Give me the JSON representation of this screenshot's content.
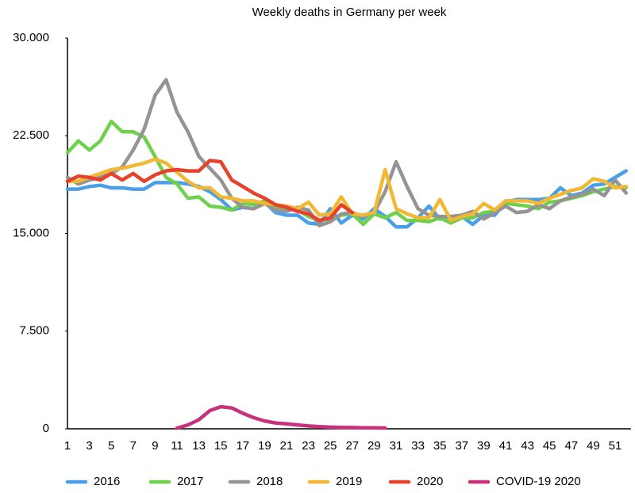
{
  "chart_data": {
    "type": "line",
    "title": "Weekly deaths in Germany per week",
    "categories": [
      1,
      null,
      3,
      null,
      5,
      null,
      7,
      null,
      9,
      null,
      11,
      null,
      13,
      null,
      15,
      null,
      17,
      null,
      19,
      null,
      21,
      null,
      23,
      null,
      25,
      null,
      27,
      null,
      29,
      null,
      31,
      null,
      33,
      null,
      35,
      null,
      37,
      null,
      39,
      null,
      41,
      null,
      43,
      null,
      45,
      null,
      47,
      null,
      49,
      null,
      51,
      null
    ],
    "ylim": [
      0,
      30000
    ],
    "yticks": [
      0,
      {
        "value": 7500,
        "label": "7.500"
      },
      {
        "value": 15000,
        "label": "15.000"
      },
      {
        "value": 22500,
        "label": "22.500"
      },
      {
        "value": 30000,
        "label": "30.000"
      }
    ],
    "legend": "bottom",
    "series": [
      {
        "name": "2016",
        "color": "#4a9fea",
        "values": [
          18400,
          18400,
          18600,
          18700,
          18500,
          18500,
          18400,
          18400,
          18900,
          18900,
          18900,
          18800,
          18600,
          18200,
          17600,
          16800,
          17000,
          16900,
          17400,
          16600,
          16400,
          16400,
          15800,
          15700,
          16900,
          15800,
          16400,
          16100,
          16900,
          16300,
          15500,
          15500,
          16200,
          17100,
          16100,
          16300,
          16300,
          15700,
          16400,
          16400,
          17400,
          17600,
          17600,
          17600,
          17700,
          18500,
          17900,
          18100,
          18700,
          18800,
          19300,
          19800
        ]
      },
      {
        "name": "2017",
        "color": "#6fd04c",
        "values": [
          21200,
          22100,
          21400,
          22100,
          23600,
          22800,
          22800,
          22400,
          20900,
          19300,
          18800,
          17700,
          17800,
          17100,
          17000,
          16800,
          17300,
          17200,
          17500,
          17000,
          16900,
          16800,
          16300,
          16000,
          16100,
          16400,
          16500,
          15700,
          16500,
          16200,
          16600,
          16000,
          16000,
          15900,
          16200,
          15800,
          16200,
          16200,
          16600,
          16700,
          17300,
          17200,
          17100,
          16900,
          17400,
          17500,
          17700,
          17900,
          18200,
          18400,
          18600,
          18500
        ]
      },
      {
        "name": "2018",
        "color": "#949494",
        "values": [
          19300,
          18800,
          19100,
          19300,
          19600,
          20100,
          21400,
          23000,
          25600,
          26800,
          24300,
          22800,
          20900,
          20000,
          19100,
          17700,
          17000,
          16900,
          17300,
          16800,
          16700,
          17000,
          16800,
          15600,
          15900,
          16500,
          16600,
          16300,
          16600,
          18200,
          20500,
          18600,
          16900,
          16400,
          16300,
          16300,
          16400,
          16700,
          16100,
          16600,
          17100,
          16600,
          16700,
          17200,
          16900,
          17500,
          17800,
          18000,
          18400,
          17900,
          19100,
          18100
        ]
      },
      {
        "name": "2019",
        "color": "#f2b733",
        "values": [
          19000,
          19000,
          19300,
          19600,
          19900,
          20000,
          20200,
          20400,
          20700,
          20400,
          19700,
          19000,
          18500,
          18500,
          17800,
          17700,
          17500,
          17500,
          17300,
          17200,
          17100,
          16900,
          17400,
          16400,
          16500,
          17800,
          16500,
          16400,
          16600,
          19900,
          16900,
          16500,
          16200,
          16200,
          17600,
          16000,
          16300,
          16500,
          17300,
          16800,
          17500,
          17500,
          17500,
          17300,
          17700,
          18000,
          18300,
          18500,
          19200,
          19000,
          18500,
          18600
        ]
      },
      {
        "name": "2020",
        "color": "#e8412b",
        "values": [
          19000,
          19400,
          19300,
          19100,
          19600,
          19100,
          19600,
          19000,
          19500,
          19800,
          19900,
          19800,
          19800,
          20600,
          20500,
          19100,
          18600,
          18100,
          17700,
          17200,
          17000,
          16700,
          16500,
          16000,
          16200,
          17200,
          16600,
          null,
          null,
          null,
          null,
          null,
          null,
          null,
          null,
          null,
          null,
          null,
          null,
          null,
          null,
          null,
          null,
          null,
          null,
          null,
          null,
          null,
          null,
          null,
          null,
          null
        ]
      },
      {
        "name": "COVID-19 2020",
        "color": "#c8317c",
        "values": [
          null,
          null,
          null,
          null,
          null,
          null,
          null,
          null,
          null,
          null,
          50,
          300,
          700,
          1400,
          1700,
          1600,
          1200,
          850,
          600,
          450,
          380,
          300,
          220,
          170,
          130,
          110,
          100,
          80,
          70,
          60,
          null,
          null,
          null,
          null,
          null,
          null,
          null,
          null,
          null,
          null,
          null,
          null,
          null,
          null,
          null,
          null,
          null,
          null,
          null,
          null,
          null,
          null
        ]
      }
    ]
  }
}
